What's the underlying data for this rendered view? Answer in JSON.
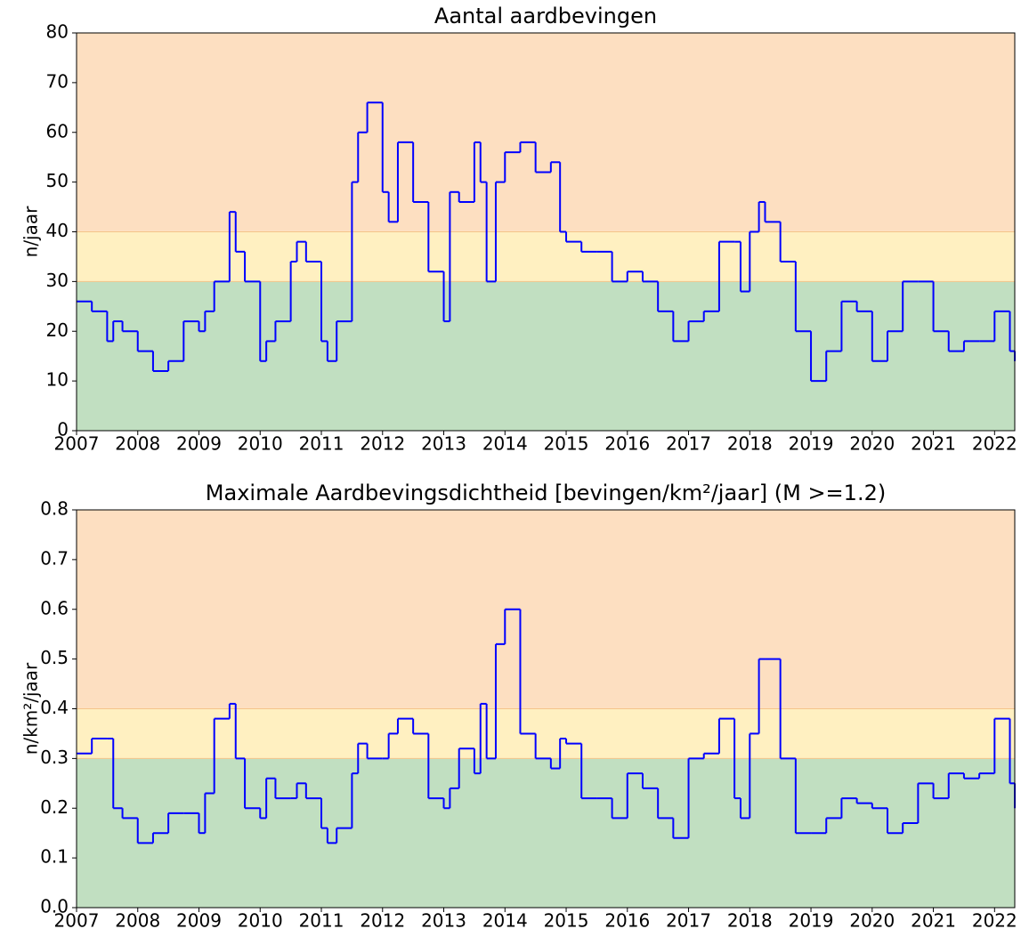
{
  "chart_data": [
    {
      "type": "step",
      "title": "Aantal aardbevingen",
      "y_label": "n/jaar",
      "x": [
        2007.0,
        2007.25,
        2007.5,
        2007.6,
        2007.75,
        2008.0,
        2008.25,
        2008.5,
        2008.75,
        2009.0,
        2009.1,
        2009.25,
        2009.5,
        2009.6,
        2009.75,
        2010.0,
        2010.1,
        2010.25,
        2010.5,
        2010.6,
        2010.75,
        2011.0,
        2011.1,
        2011.25,
        2011.5,
        2011.6,
        2011.75,
        2012.0,
        2012.1,
        2012.25,
        2012.5,
        2012.75,
        2013.0,
        2013.1,
        2013.25,
        2013.5,
        2013.6,
        2013.7,
        2013.85,
        2014.0,
        2014.25,
        2014.5,
        2014.75,
        2014.9,
        2015.0,
        2015.25,
        2015.5,
        2015.75,
        2016.0,
        2016.25,
        2016.5,
        2016.75,
        2017.0,
        2017.25,
        2017.5,
        2017.75,
        2017.85,
        2018.0,
        2018.15,
        2018.25,
        2018.5,
        2018.75,
        2019.0,
        2019.25,
        2019.5,
        2019.75,
        2020.0,
        2020.25,
        2020.5,
        2020.75,
        2021.0,
        2021.25,
        2021.5,
        2021.75,
        2022.0,
        2022.25,
        2022.33
      ],
      "series": [
        {
          "color": "#0000ff",
          "values": [
            26,
            24,
            18,
            22,
            20,
            16,
            12,
            14,
            22,
            20,
            24,
            30,
            44,
            36,
            30,
            14,
            18,
            22,
            34,
            38,
            34,
            18,
            14,
            22,
            50,
            60,
            66,
            48,
            42,
            58,
            46,
            32,
            22,
            48,
            46,
            58,
            50,
            30,
            50,
            56,
            58,
            52,
            54,
            40,
            38,
            36,
            36,
            30,
            32,
            30,
            24,
            18,
            22,
            24,
            38,
            38,
            28,
            40,
            46,
            42,
            34,
            20,
            10,
            16,
            26,
            24,
            14,
            20,
            30,
            30,
            20,
            16,
            18,
            18,
            24,
            16,
            14
          ]
        }
      ],
      "xlim": [
        2007,
        2022.33
      ],
      "xticks": [
        2007,
        2008,
        2009,
        2010,
        2011,
        2012,
        2013,
        2014,
        2015,
        2016,
        2017,
        2018,
        2019,
        2020,
        2021,
        2022
      ],
      "ylim": [
        0,
        80
      ],
      "yticks": [
        0,
        10,
        20,
        30,
        40,
        50,
        60,
        70,
        80
      ],
      "bands": [
        {
          "from": 0,
          "to": 30,
          "color": "#c1dfc1"
        },
        {
          "from": 30,
          "to": 40,
          "color": "#fff0c1"
        },
        {
          "from": 40,
          "to": 80,
          "color": "#fddfc1"
        }
      ]
    },
    {
      "type": "step",
      "title": "Maximale Aardbevingsdichtheid  [bevingen/km²/jaar]  (M >=1.2)",
      "y_label": "n/km²/jaar",
      "x": [
        2007.0,
        2007.25,
        2007.5,
        2007.6,
        2007.75,
        2008.0,
        2008.25,
        2008.5,
        2008.75,
        2009.0,
        2009.1,
        2009.25,
        2009.5,
        2009.6,
        2009.75,
        2010.0,
        2010.1,
        2010.25,
        2010.5,
        2010.6,
        2010.75,
        2011.0,
        2011.1,
        2011.25,
        2011.5,
        2011.6,
        2011.75,
        2012.0,
        2012.1,
        2012.25,
        2012.5,
        2012.75,
        2013.0,
        2013.1,
        2013.25,
        2013.5,
        2013.6,
        2013.7,
        2013.85,
        2014.0,
        2014.25,
        2014.5,
        2014.75,
        2014.9,
        2015.0,
        2015.25,
        2015.5,
        2015.75,
        2016.0,
        2016.25,
        2016.5,
        2016.75,
        2017.0,
        2017.25,
        2017.5,
        2017.75,
        2017.85,
        2018.0,
        2018.15,
        2018.25,
        2018.5,
        2018.75,
        2019.0,
        2019.25,
        2019.5,
        2019.75,
        2020.0,
        2020.25,
        2020.5,
        2020.75,
        2021.0,
        2021.25,
        2021.5,
        2021.75,
        2022.0,
        2022.25,
        2022.33
      ],
      "series": [
        {
          "color": "#0000ff",
          "values": [
            0.31,
            0.34,
            0.34,
            0.2,
            0.18,
            0.13,
            0.15,
            0.19,
            0.19,
            0.15,
            0.23,
            0.38,
            0.41,
            0.3,
            0.2,
            0.18,
            0.26,
            0.22,
            0.22,
            0.25,
            0.22,
            0.16,
            0.13,
            0.16,
            0.27,
            0.33,
            0.3,
            0.3,
            0.35,
            0.38,
            0.35,
            0.22,
            0.2,
            0.24,
            0.32,
            0.27,
            0.41,
            0.3,
            0.53,
            0.6,
            0.35,
            0.3,
            0.28,
            0.34,
            0.33,
            0.22,
            0.22,
            0.18,
            0.27,
            0.24,
            0.18,
            0.14,
            0.3,
            0.31,
            0.38,
            0.22,
            0.18,
            0.35,
            0.5,
            0.5,
            0.3,
            0.15,
            0.15,
            0.18,
            0.22,
            0.21,
            0.2,
            0.15,
            0.17,
            0.25,
            0.22,
            0.27,
            0.26,
            0.27,
            0.38,
            0.25,
            0.2
          ]
        }
      ],
      "xlim": [
        2007,
        2022.33
      ],
      "xticks": [
        2007,
        2008,
        2009,
        2010,
        2011,
        2012,
        2013,
        2014,
        2015,
        2016,
        2017,
        2018,
        2019,
        2020,
        2021,
        2022
      ],
      "ylim": [
        0,
        0.8
      ],
      "yticks": [
        {
          "value": 0,
          "label": "0.0"
        },
        0.1,
        0.2,
        0.3,
        0.4,
        0.5,
        0.6,
        0.7,
        0.8
      ],
      "bands": [
        {
          "from": 0,
          "to": 0.3,
          "color": "#c1dfc1"
        },
        {
          "from": 0.3,
          "to": 0.4,
          "color": "#fff0c1"
        },
        {
          "from": 0.4,
          "to": 0.8,
          "color": "#fddfc1"
        }
      ]
    }
  ]
}
